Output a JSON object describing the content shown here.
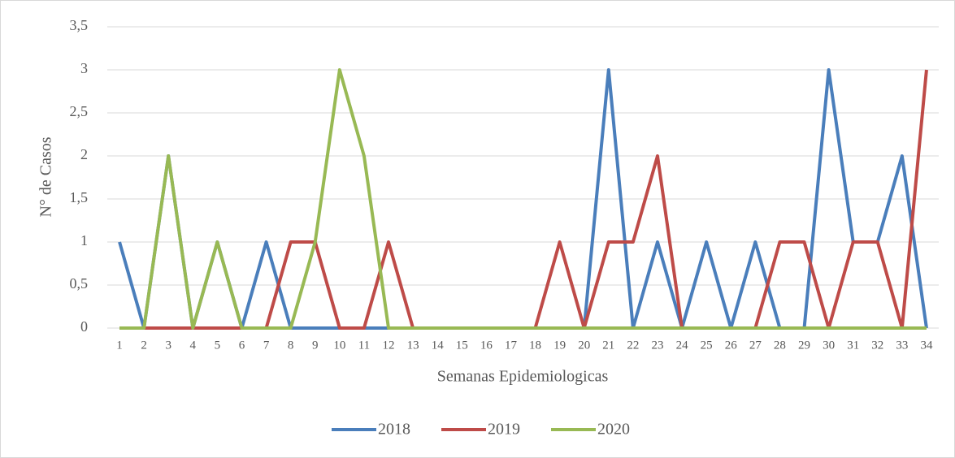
{
  "chart_data": {
    "type": "line",
    "x_label": "Semanas Epidemiologicas",
    "y_label": "N° de Casos",
    "categories": [
      "1",
      "2",
      "3",
      "4",
      "5",
      "6",
      "7",
      "8",
      "9",
      "10",
      "11",
      "12",
      "13",
      "14",
      "15",
      "16",
      "17",
      "18",
      "19",
      "20",
      "21",
      "22",
      "23",
      "24",
      "25",
      "26",
      "27",
      "28",
      "29",
      "30",
      "31",
      "32",
      "33",
      "34"
    ],
    "series": [
      {
        "name": "2018",
        "color": "#4a7ebb",
        "values": [
          1,
          0,
          2,
          0,
          1,
          0,
          1,
          0,
          0,
          0,
          0,
          0,
          0,
          0,
          0,
          0,
          0,
          0,
          0,
          0,
          3,
          0,
          1,
          0,
          1,
          0,
          1,
          0,
          0,
          3,
          1,
          1,
          2,
          0
        ]
      },
      {
        "name": "2019",
        "color": "#be4b48",
        "values": [
          0,
          0,
          0,
          0,
          0,
          0,
          0,
          1,
          1,
          0,
          0,
          1,
          0,
          0,
          0,
          0,
          0,
          0,
          1,
          0,
          1,
          1,
          2,
          0,
          0,
          0,
          0,
          1,
          1,
          0,
          1,
          1,
          0,
          3
        ]
      },
      {
        "name": "2020",
        "color": "#98b954",
        "values": [
          0,
          0,
          2,
          0,
          1,
          0,
          0,
          0,
          1,
          3,
          2,
          0,
          0,
          0,
          0,
          0,
          0,
          0,
          0,
          0,
          0,
          0,
          0,
          0,
          0,
          0,
          0,
          0,
          0,
          0,
          0,
          0,
          0,
          0
        ]
      }
    ],
    "ylim": [
      0,
      3.5
    ],
    "yticks": [
      0,
      {
        "value": 0.5,
        "label": "0,5"
      },
      1,
      {
        "value": 1.5,
        "label": "1,5"
      },
      2,
      {
        "value": 2.5,
        "label": "2,5"
      },
      3,
      {
        "value": 3.5,
        "label": "3,5"
      }
    ],
    "grid": true,
    "legend": "bottom"
  }
}
